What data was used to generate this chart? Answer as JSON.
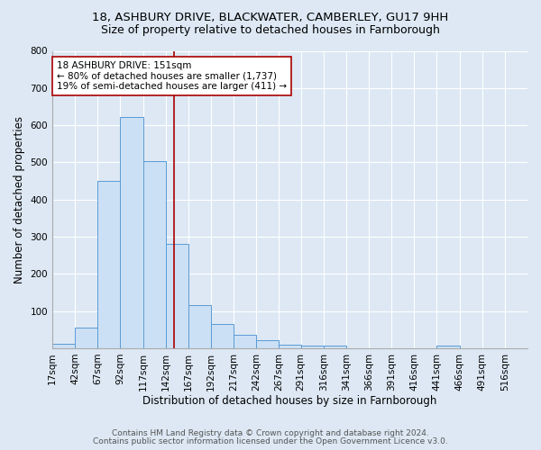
{
  "title_line1": "18, ASHBURY DRIVE, BLACKWATER, CAMBERLEY, GU17 9HH",
  "title_line2": "Size of property relative to detached houses in Farnborough",
  "xlabel": "Distribution of detached houses by size in Farnborough",
  "ylabel": "Number of detached properties",
  "bar_labels": [
    "17sqm",
    "42sqm",
    "67sqm",
    "92sqm",
    "117sqm",
    "142sqm",
    "167sqm",
    "192sqm",
    "217sqm",
    "242sqm",
    "267sqm",
    "291sqm",
    "316sqm",
    "341sqm",
    "366sqm",
    "391sqm",
    "416sqm",
    "441sqm",
    "466sqm",
    "491sqm",
    "516sqm"
  ],
  "bar_heights": [
    12,
    55,
    450,
    622,
    503,
    280,
    115,
    65,
    37,
    22,
    10,
    8,
    8,
    0,
    0,
    0,
    0,
    8,
    0,
    0,
    0
  ],
  "bin_edges": [
    17,
    42,
    67,
    92,
    117,
    142,
    167,
    192,
    217,
    242,
    267,
    291,
    316,
    341,
    366,
    391,
    416,
    441,
    466,
    491,
    516,
    541
  ],
  "bar_color": "#cce0f5",
  "bar_edgecolor": "#5b9bd5",
  "vline_x": 151,
  "vline_color": "#aa0000",
  "annotation_text": "18 ASHBURY DRIVE: 151sqm\n← 80% of detached houses are smaller (1,737)\n19% of semi-detached houses are larger (411) →",
  "annotation_box_edgecolor": "#aa0000",
  "annotation_box_facecolor": "white",
  "ylim": [
    0,
    800
  ],
  "yticks": [
    0,
    100,
    200,
    300,
    400,
    500,
    600,
    700,
    800
  ],
  "footer_line1": "Contains HM Land Registry data © Crown copyright and database right 2024.",
  "footer_line2": "Contains public sector information licensed under the Open Government Licence v3.0.",
  "background_color": "#dde8f4",
  "plot_background_color": "#dde8f4",
  "grid_color": "white",
  "title_fontsize": 9.5,
  "title2_fontsize": 9,
  "axis_label_fontsize": 8.5,
  "tick_fontsize": 7.5,
  "annotation_fontsize": 7.5,
  "footer_fontsize": 6.5
}
